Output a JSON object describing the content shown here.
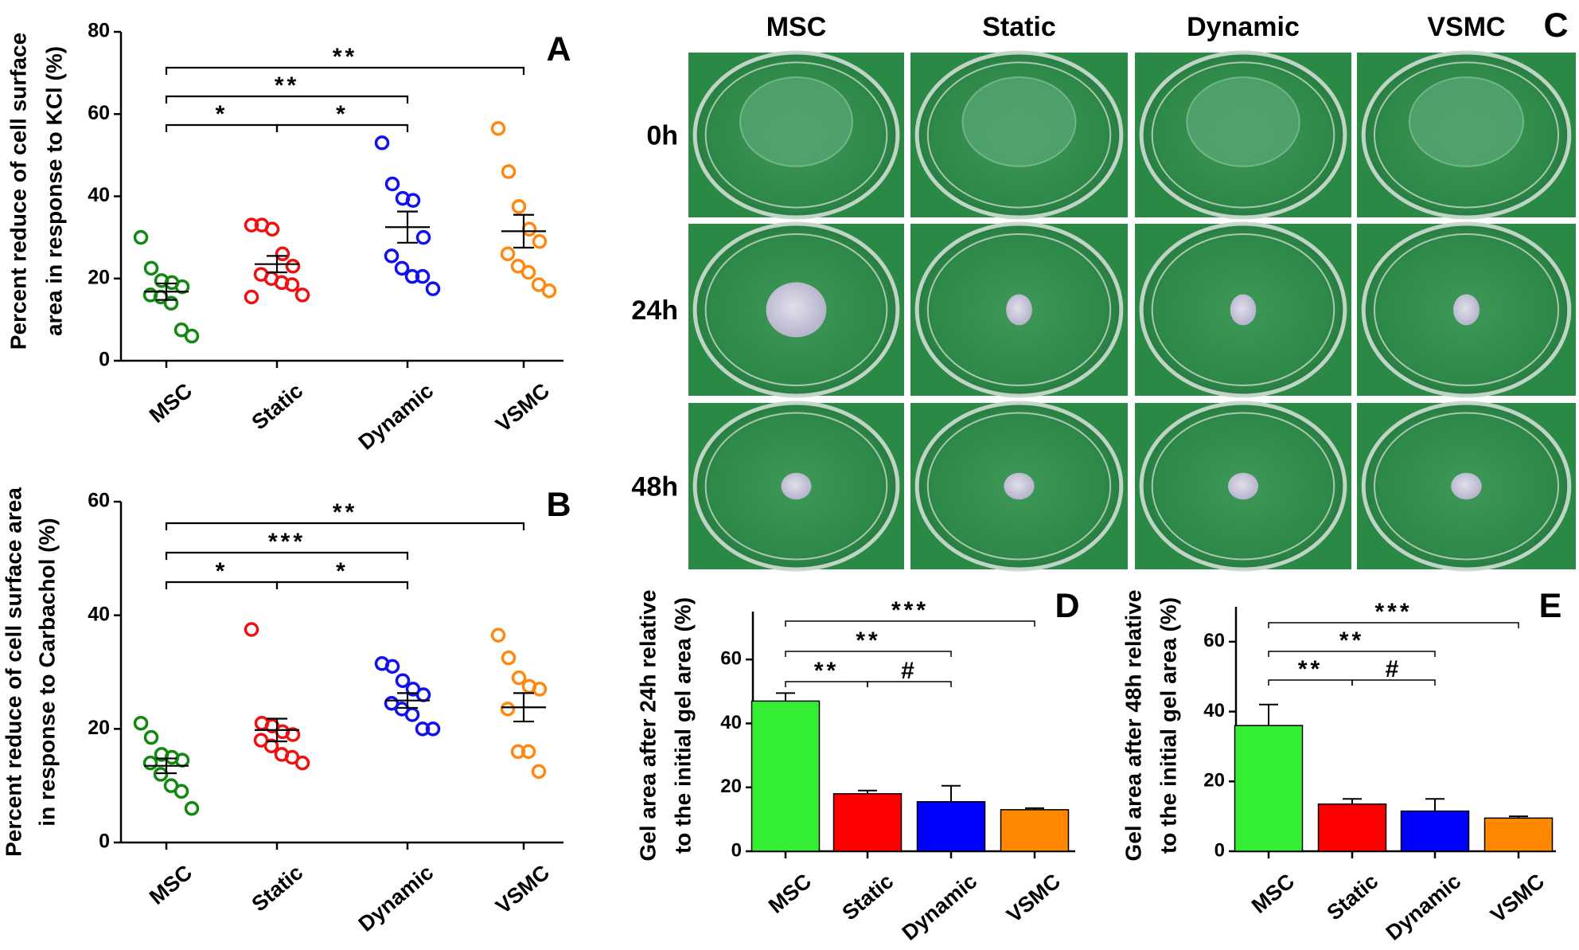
{
  "chart_data": [
    {
      "type": "dot",
      "panel": "A",
      "ylabel": [
        "Percent reduce of cell surface",
        "area in response to KCl (%)"
      ],
      "categories": [
        "MSC",
        "Static",
        "Dynamic",
        "VSMC"
      ],
      "colors": [
        "#118811",
        "#ee1111",
        "#1111ee",
        "#ff8811"
      ],
      "points": [
        [
          30,
          22.5,
          19.5,
          19,
          18,
          16,
          15.5,
          14,
          7.5,
          6
        ],
        [
          33,
          33,
          32,
          26,
          23,
          21,
          20,
          19,
          18.5,
          16,
          15.5
        ],
        [
          53,
          43,
          39.5,
          39,
          30,
          25.5,
          22.5,
          20.5,
          20.5,
          17.5
        ],
        [
          56.5,
          46,
          37.5,
          32,
          29,
          26,
          23,
          21.5,
          18.5,
          17
        ]
      ],
      "means": [
        16.8,
        23.5,
        32.5,
        31.5
      ],
      "errors": [
        2,
        2,
        3.8,
        4
      ],
      "ylim": [
        0,
        80
      ],
      "yticks": [
        0,
        20,
        40,
        60,
        80
      ],
      "brackets": [
        {
          "label": "**",
          "span": [
            0,
            3
          ]
        },
        {
          "label": "**",
          "span": [
            0,
            2
          ]
        },
        {
          "label": "*",
          "span": [
            0,
            1
          ]
        },
        {
          "label": "*",
          "span": [
            1,
            2
          ]
        }
      ]
    },
    {
      "type": "dot",
      "panel": "B",
      "ylabel": [
        "Percent reduce of cell surface area",
        "in response to Carbachol (%)"
      ],
      "categories": [
        "MSC",
        "Static",
        "Dynamic",
        "VSMC"
      ],
      "colors": [
        "#118811",
        "#ee1111",
        "#1111ee",
        "#ff8811"
      ],
      "points": [
        [
          21,
          18.5,
          15.5,
          15,
          14.5,
          14,
          12,
          10,
          9,
          6
        ],
        [
          37.5,
          21,
          20.5,
          19.5,
          19,
          18,
          17,
          15.5,
          15,
          14
        ],
        [
          31.5,
          31,
          28.5,
          27,
          26,
          24.5,
          23.5,
          22.5,
          20,
          20
        ],
        [
          36.5,
          32.5,
          29,
          27.5,
          27,
          23.5,
          16,
          16,
          12.5
        ]
      ],
      "means": [
        13.5,
        19.8,
        25,
        23.8
      ],
      "errors": [
        1.3,
        2,
        1.3,
        2.5
      ],
      "ylim": [
        0,
        60
      ],
      "yticks": [
        0,
        20,
        40,
        60
      ],
      "brackets": [
        {
          "label": "**",
          "span": [
            0,
            3
          ]
        },
        {
          "label": "***",
          "span": [
            0,
            2
          ]
        },
        {
          "label": "*",
          "span": [
            0,
            1
          ]
        },
        {
          "label": "*",
          "span": [
            1,
            2
          ]
        }
      ]
    },
    {
      "type": "bar",
      "panel": "D",
      "ylabel": [
        "Gel area after 24h relative",
        "to the initial gel area (%)"
      ],
      "categories": [
        "MSC",
        "Static",
        "Dynamic",
        "VSMC"
      ],
      "colors": [
        "#33ee33",
        "#ff0000",
        "#0000ff",
        "#ff8800"
      ],
      "values": [
        47,
        18,
        15.5,
        13
      ],
      "errors": [
        2.5,
        1,
        5,
        0.5
      ],
      "ylim": [
        0,
        75
      ],
      "yticks": [
        0,
        20,
        40,
        60
      ],
      "brackets": [
        {
          "label": "***",
          "span": [
            0,
            3
          ]
        },
        {
          "label": "**",
          "span": [
            0,
            2
          ]
        },
        {
          "label": "**",
          "span": [
            0,
            1
          ]
        },
        {
          "label": "#",
          "span": [
            1,
            2
          ]
        }
      ]
    },
    {
      "type": "bar",
      "panel": "E",
      "ylabel": [
        "Gel area after 48h relative",
        "to the initial gel area (%)"
      ],
      "categories": [
        "MSC",
        "Static",
        "Dynamic",
        "VSMC"
      ],
      "colors": [
        "#33ee33",
        "#ff0000",
        "#0000ff",
        "#ff8800"
      ],
      "values": [
        36,
        13.5,
        11.5,
        9.5
      ],
      "errors": [
        6,
        1.5,
        3.5,
        0.5
      ],
      "ylim": [
        0,
        70
      ],
      "yticks": [
        0,
        20,
        40,
        60
      ],
      "brackets": [
        {
          "label": "***",
          "span": [
            0,
            3
          ]
        },
        {
          "label": "**",
          "span": [
            0,
            2
          ]
        },
        {
          "label": "**",
          "span": [
            0,
            1
          ]
        },
        {
          "label": "#",
          "span": [
            1,
            2
          ]
        }
      ]
    }
  ],
  "panel_c": {
    "panel": "C",
    "columns": [
      "MSC",
      "Static",
      "Dynamic",
      "VSMC"
    ],
    "rows": [
      "0h",
      "24h",
      "48h"
    ]
  }
}
